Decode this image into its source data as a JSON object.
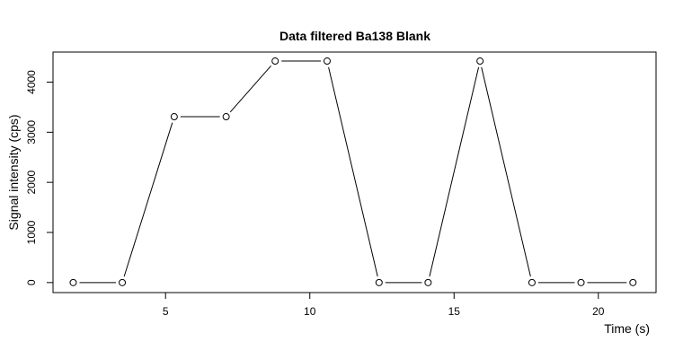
{
  "chart_data": {
    "type": "line",
    "title": "Data filtered Ba138 Blank",
    "xlabel": "Time (s)",
    "ylabel": "Signal intensity (cps)",
    "xlim": [
      1.1,
      22.0
    ],
    "ylim": [
      -200,
      4600
    ],
    "x_ticks": [
      5,
      10,
      15,
      20
    ],
    "y_ticks": [
      0,
      1000,
      2000,
      3000,
      4000
    ],
    "grid": false,
    "series": [
      {
        "x": [
          1.8,
          3.5,
          5.3,
          7.1,
          8.8,
          10.6,
          12.4,
          14.1,
          15.9,
          17.7,
          19.4,
          21.2
        ],
        "y": [
          0,
          0,
          3310,
          3310,
          4420,
          4420,
          0,
          0,
          4420,
          0,
          0,
          0
        ]
      }
    ]
  }
}
